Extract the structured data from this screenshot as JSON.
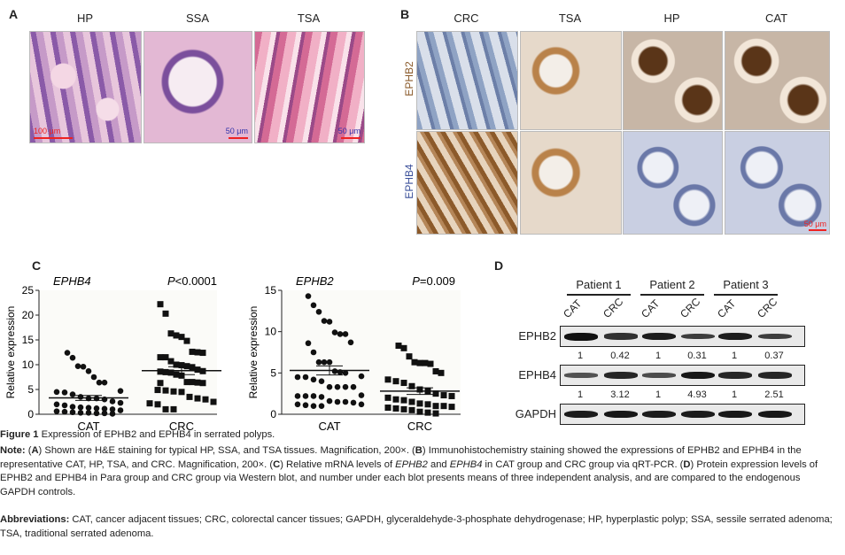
{
  "panelA": {
    "label": "A",
    "titles": [
      "HP",
      "SSA",
      "TSA"
    ],
    "scalebars": [
      "100 μm",
      "50 μm",
      "50 μm"
    ]
  },
  "panelB": {
    "label": "B",
    "titles": [
      "CRC",
      "TSA",
      "HP",
      "CAT"
    ],
    "rows": [
      "EPHB2",
      "EPHB4"
    ],
    "scalebar": "50 μm",
    "row_colors": [
      "#8a5a2a",
      "#3a4f9a"
    ]
  },
  "panelC": {
    "label": "C"
  },
  "chart_data": [
    {
      "type": "scatter",
      "title": "EPHB4",
      "pvalue": "P<0.0001",
      "pvalue_italic": "P",
      "pvalue_rest": "<0.0001",
      "ylabel": "Relative expression",
      "categories": [
        "CAT",
        "CRC"
      ],
      "ylim": [
        0,
        25
      ],
      "yticks": [
        "0",
        "5",
        "10",
        "15",
        "20",
        "25"
      ],
      "series": [
        {
          "values": [
            12.4,
            11.4,
            9.7,
            9.6,
            8.7,
            7.5,
            6.4,
            6.4,
            4.7,
            4.5,
            4.4,
            4.0,
            3.5,
            3.2,
            3.2,
            3.0,
            2.6,
            2.3,
            2.0,
            1.8,
            1.5,
            1.4,
            1.3,
            1.2,
            1.1,
            1.0,
            0.8,
            0.6,
            0.5,
            0.4,
            0.3,
            0.3,
            0.2,
            0.2,
            0.1
          ],
          "marker": "circle",
          "mean": 3.3,
          "sem": 0.5
        },
        {
          "values": [
            22.2,
            20.3,
            16.3,
            15.9,
            15.6,
            14.8,
            12.6,
            12.5,
            12.4,
            11.5,
            11.5,
            10.7,
            10.0,
            9.9,
            9.7,
            9.5,
            9.0,
            8.7,
            8.6,
            8.5,
            8.4,
            8.0,
            7.8,
            6.5,
            6.5,
            6.4,
            6.3,
            6.3,
            4.9,
            4.8,
            4.6,
            4.5,
            3.5,
            3.2,
            3.0,
            2.5,
            2.2,
            2.0,
            1.0,
            1.0
          ],
          "marker": "square",
          "mean": 8.8,
          "sem": 0.8
        }
      ]
    },
    {
      "type": "scatter",
      "title": "EPHB2",
      "pvalue": "P=0.009",
      "pvalue_italic": "P",
      "pvalue_rest": "=0.009",
      "ylabel": "Relative expression",
      "categories": [
        "CAT",
        "CRC"
      ],
      "ylim": [
        0,
        15
      ],
      "yticks": [
        "0",
        "5",
        "10",
        "15"
      ],
      "series": [
        {
          "values": [
            14.3,
            13.2,
            12.4,
            11.3,
            11.2,
            9.9,
            9.7,
            9.7,
            8.7,
            8.6,
            7.5,
            6.3,
            6.3,
            6.3,
            5.2,
            5.1,
            5.0,
            4.6,
            4.5,
            4.5,
            4.2,
            4.0,
            3.3,
            3.3,
            3.3,
            3.3,
            2.3,
            2.2,
            2.2,
            2.2,
            2.1,
            1.6,
            1.5,
            1.5,
            1.4,
            1.2,
            1.2,
            1.1,
            1.0,
            1.0
          ],
          "marker": "circle",
          "mean": 5.3,
          "sem": 0.55
        },
        {
          "values": [
            8.3,
            8.0,
            7.0,
            6.3,
            6.2,
            6.2,
            6.1,
            5.2,
            5.0,
            4.2,
            4.0,
            3.8,
            3.4,
            3.0,
            2.8,
            2.5,
            2.3,
            2.2,
            2.0,
            1.8,
            1.7,
            1.5,
            1.3,
            1.2,
            1.0,
            1.0,
            0.9,
            0.8,
            0.7,
            0.6,
            0.5,
            0.3,
            0.2,
            0.1
          ],
          "marker": "square",
          "mean": 2.8,
          "sem": 0.4
        }
      ]
    }
  ],
  "panelD": {
    "label": "D",
    "patients": [
      "Patient 1",
      "Patient 2",
      "Patient 3"
    ],
    "lanes": [
      "CAT",
      "CRC",
      "CAT",
      "CRC",
      "CAT",
      "CRC"
    ],
    "blots": [
      {
        "name": "EPHB2",
        "values": [
          "1",
          "0.42",
          "1",
          "0.31",
          "1",
          "0.37"
        ],
        "intensity": [
          1,
          0.7,
          0.9,
          0.6,
          0.9,
          0.6
        ]
      },
      {
        "name": "EPHB4",
        "values": [
          "1",
          "3.12",
          "1",
          "4.93",
          "1",
          "2.51"
        ],
        "intensity": [
          0.4,
          0.8,
          0.45,
          0.95,
          0.8,
          0.8
        ]
      },
      {
        "name": "GAPDH",
        "values": [],
        "intensity": [
          0.9,
          0.95,
          0.9,
          0.9,
          0.95,
          0.95
        ]
      }
    ]
  },
  "caption": {
    "fig_label": "Figure 1",
    "fig_title": " Expression of EPHB2 and EPHB4 in serrated polyps.",
    "note_label": "Note:",
    "note_parts": [
      " (",
      "A",
      ") Shown are H&E staining for typical HP, SSA, and TSA tissues. Magnification, 200×. (",
      "B",
      ") Immunohistochemistry staining showed the expressions of EPHB2 and EPHB4 in the representative CAT, HP, TSA, and CRC. Magnification, 200×. (",
      "C",
      ") Relative mRNA levels of ",
      "EPHB2",
      " and ",
      "EPHB4",
      " in CAT group and CRC group via qRT-PCR. (",
      "D",
      ") Protein expression levels of EPHB2 and EPHB4 in Para group and CRC group via Western blot, and number under each blot presents means of three independent analysis, and are compared to the endogenous GAPDH controls."
    ],
    "abbr_label": "Abbreviations:",
    "abbr_text": " CAT, cancer adjacent tissues; CRC, colorectal cancer tissues; GAPDH, glyceraldehyde-3-phosphate dehydrogenase; HP, hyperplastic polyp; SSA, sessile serrated adenoma; TSA, traditional serrated adenoma."
  }
}
